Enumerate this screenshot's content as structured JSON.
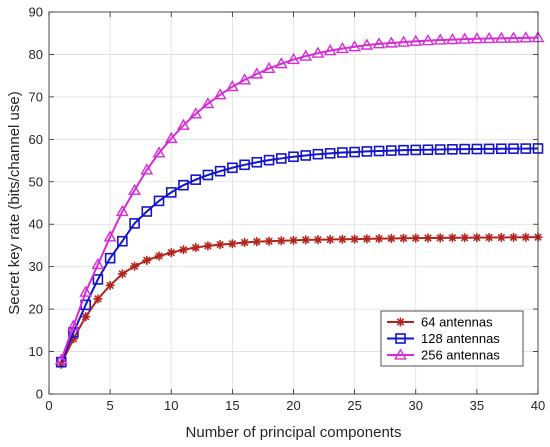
{
  "chart_data": {
    "type": "line",
    "title": "",
    "xlabel": "Number of principal components",
    "ylabel": "Secret key rate (bits/channel use)",
    "xlim": [
      0,
      40
    ],
    "ylim": [
      0,
      90
    ],
    "xticks": [
      0,
      5,
      10,
      15,
      20,
      25,
      30,
      35,
      40
    ],
    "yticks": [
      0,
      10,
      20,
      30,
      40,
      50,
      60,
      70,
      80,
      90
    ],
    "grid": true,
    "legend_position": "bottom-right",
    "x": [
      1,
      2,
      3,
      4,
      5,
      6,
      7,
      8,
      9,
      10,
      11,
      12,
      13,
      14,
      15,
      16,
      17,
      18,
      19,
      20,
      21,
      22,
      23,
      24,
      25,
      26,
      27,
      28,
      29,
      30,
      31,
      32,
      33,
      34,
      35,
      36,
      37,
      38,
      39,
      40
    ],
    "series": [
      {
        "name": "64 antennas",
        "color": "#b4241e",
        "marker": "asterisk",
        "values": [
          7.0,
          13.0,
          18.2,
          22.4,
          25.6,
          28.3,
          30.1,
          31.5,
          32.5,
          33.3,
          34.0,
          34.5,
          34.9,
          35.2,
          35.4,
          35.7,
          35.9,
          36.0,
          36.1,
          36.2,
          36.3,
          36.35,
          36.4,
          36.45,
          36.5,
          36.55,
          36.6,
          36.65,
          36.7,
          36.72,
          36.75,
          36.77,
          36.8,
          36.82,
          36.84,
          36.86,
          36.88,
          36.9,
          36.92,
          36.95
        ]
      },
      {
        "name": "128 antennas",
        "color": "#1515c8",
        "marker": "square",
        "values": [
          7.5,
          14.5,
          21.0,
          27.0,
          32.0,
          36.0,
          40.2,
          43.0,
          45.5,
          47.5,
          49.2,
          50.5,
          51.6,
          52.5,
          53.3,
          54.0,
          54.6,
          55.1,
          55.5,
          55.9,
          56.2,
          56.5,
          56.7,
          56.9,
          57.0,
          57.15,
          57.25,
          57.35,
          57.45,
          57.5,
          57.55,
          57.6,
          57.65,
          57.7,
          57.72,
          57.75,
          57.78,
          57.8,
          57.82,
          57.85
        ]
      },
      {
        "name": "256 antennas",
        "color": "#d62bd6",
        "marker": "triangle",
        "values": [
          8.0,
          16.0,
          24.0,
          30.5,
          37.0,
          43.0,
          48.0,
          52.8,
          56.8,
          60.2,
          63.3,
          66.0,
          68.4,
          70.5,
          72.4,
          74.0,
          75.4,
          76.7,
          77.8,
          78.8,
          79.6,
          80.3,
          80.9,
          81.4,
          81.8,
          82.2,
          82.5,
          82.7,
          82.9,
          83.1,
          83.25,
          83.4,
          83.5,
          83.6,
          83.7,
          83.75,
          83.8,
          83.85,
          83.9,
          83.95
        ]
      }
    ]
  }
}
